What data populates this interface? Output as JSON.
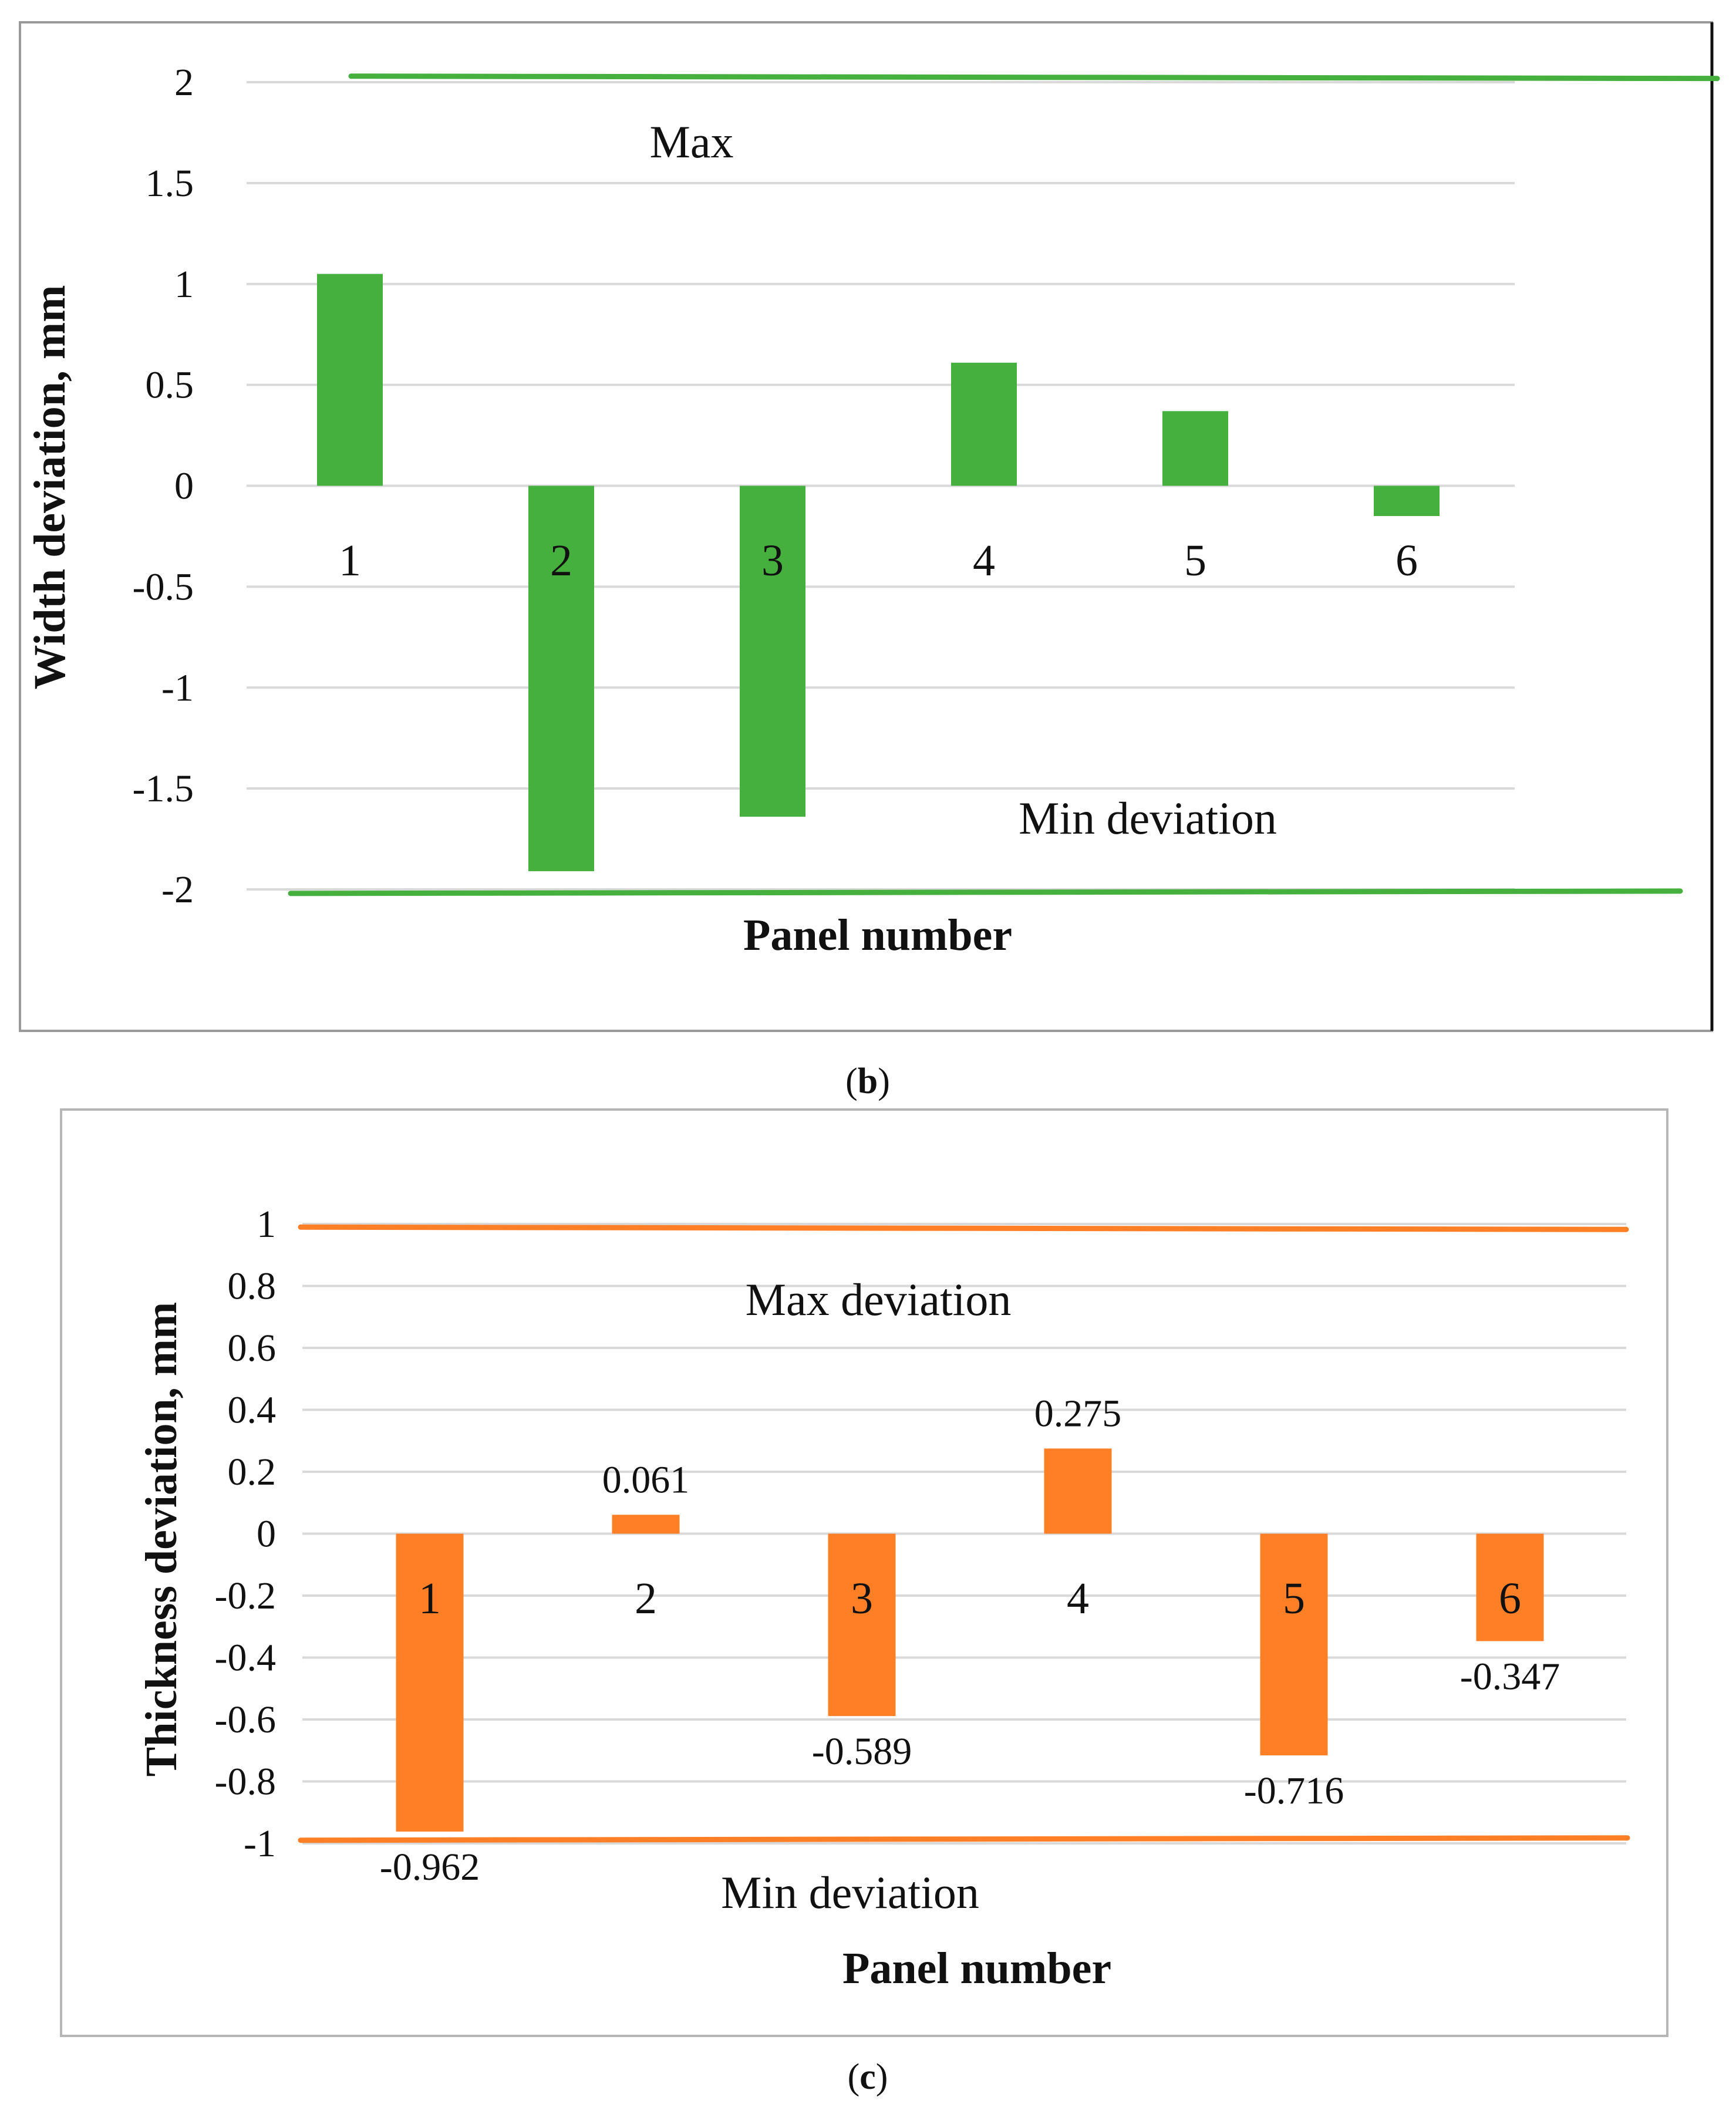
{
  "chart_data": [
    {
      "type": "bar",
      "title": "",
      "xlabel": "Panel number",
      "ylabel": "Width deviation, mm",
      "ylim": [
        -2,
        2
      ],
      "yticks": [
        "2",
        "1.5",
        "1",
        "0.5",
        "0",
        "-0.5",
        "-1",
        "-1.5",
        "-2"
      ],
      "grid": true,
      "categories": [
        "1",
        "2",
        "3",
        "4",
        "5",
        "6"
      ],
      "values": [
        1.05,
        -1.91,
        -1.64,
        0.61,
        0.37,
        -0.15
      ],
      "color": "#46B03E",
      "reference_lines": [
        {
          "label": "Max",
          "value": 2.03
        },
        {
          "label": "Min deviation",
          "value": -2.02
        }
      ],
      "caption_letter": "b"
    },
    {
      "type": "bar",
      "title": "",
      "xlabel": "Panel number",
      "ylabel": "Thickness deviation, mm",
      "ylim": [
        -1,
        1
      ],
      "yticks": [
        "1",
        "0.8",
        "0.6",
        "0.4",
        "0.2",
        "0",
        "-0.2",
        "-0.4",
        "-0.6",
        "-0.8",
        "-1"
      ],
      "grid": true,
      "categories": [
        "1",
        "2",
        "3",
        "4",
        "5",
        "6"
      ],
      "values": [
        -0.962,
        0.061,
        -0.589,
        0.275,
        -0.716,
        -0.347
      ],
      "data_labels": [
        "-0.962",
        "0.061",
        "-0.589",
        "0.275",
        "-0.716",
        "-0.347"
      ],
      "color": "#FF7F27",
      "reference_lines": [
        {
          "label": "Max deviation",
          "value": 0.99
        },
        {
          "label": "Min deviation",
          "value": -0.99
        }
      ],
      "caption_letter": "c"
    }
  ]
}
